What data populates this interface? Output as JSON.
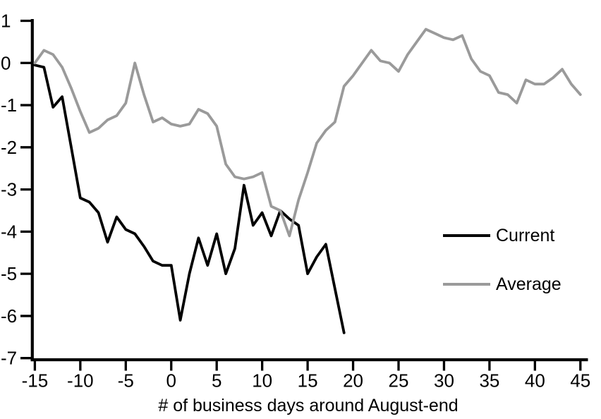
{
  "chart_data": {
    "type": "line",
    "title": "",
    "xlabel": "# of business days around August-end",
    "ylabel": "",
    "xlim": [
      -15,
      45
    ],
    "ylim": [
      -7,
      1
    ],
    "x_ticks": [
      -15,
      -10,
      -5,
      0,
      5,
      10,
      15,
      20,
      25,
      30,
      35,
      40,
      45
    ],
    "y_ticks": [
      1,
      0,
      -1,
      -2,
      -3,
      -4,
      -5,
      -6,
      -7
    ],
    "grid": false,
    "legend_position": "center-right",
    "background": "#ffffff",
    "axis_color": "#000000",
    "text_color": "#000000",
    "series": [
      {
        "name": "Current",
        "color": "#000000",
        "x_start": -15,
        "x_step": 1,
        "values": [
          -0.05,
          -0.1,
          -1.05,
          -0.8,
          -2.0,
          -3.2,
          -3.3,
          -3.55,
          -4.25,
          -3.65,
          -3.95,
          -4.05,
          -4.35,
          -4.7,
          -4.8,
          -4.8,
          -6.1,
          -5.0,
          -4.15,
          -4.8,
          -4.05,
          -5.0,
          -4.4,
          -2.9,
          -3.85,
          -3.55,
          -4.1,
          -3.5,
          -3.7,
          -3.85,
          -5.0,
          -4.6,
          -4.3,
          -5.35,
          -6.4
        ]
      },
      {
        "name": "Average",
        "color": "#9a9a9a",
        "x_start": -15,
        "x_step": 1,
        "values": [
          0.0,
          0.3,
          0.2,
          -0.1,
          -0.6,
          -1.15,
          -1.65,
          -1.55,
          -1.35,
          -1.25,
          -0.95,
          0.0,
          -0.75,
          -1.4,
          -1.3,
          -1.45,
          -1.5,
          -1.45,
          -1.1,
          -1.2,
          -1.5,
          -2.4,
          -2.7,
          -2.75,
          -2.7,
          -2.6,
          -3.4,
          -3.5,
          -4.1,
          -3.25,
          -2.6,
          -1.9,
          -1.6,
          -1.4,
          -0.55,
          -0.3,
          0.0,
          0.3,
          0.05,
          0.0,
          -0.2,
          0.2,
          0.5,
          0.8,
          0.7,
          0.6,
          0.55,
          0.65,
          0.1,
          -0.2,
          -0.3,
          -0.7,
          -0.75,
          -0.95,
          -0.4,
          -0.5,
          -0.5,
          -0.35,
          -0.15,
          -0.5,
          -0.75
        ]
      }
    ]
  }
}
